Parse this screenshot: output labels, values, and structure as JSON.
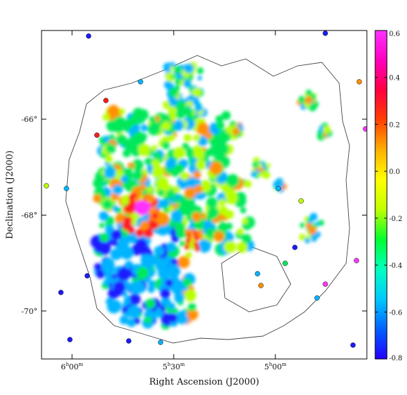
{
  "chart_data": {
    "type": "heatmap",
    "title": "",
    "xlabel": "Right Ascension (J2000)",
    "ylabel": "Declination (J2000)",
    "x_ticks": [
      {
        "label": "6h00m",
        "hours": 6.0
      },
      {
        "label": "5h30m",
        "hours": 5.5
      },
      {
        "label": "5h00m",
        "hours": 5.0
      }
    ],
    "y_ticks": [
      {
        "label": "-66°",
        "deg": -66
      },
      {
        "label": "-68°",
        "deg": -68
      },
      {
        "label": "-70°",
        "deg": -70
      }
    ],
    "xlim_hours": [
      6.15,
      4.55
    ],
    "ylim_deg": [
      -71.0,
      -64.15
    ],
    "colorbar": {
      "range": [
        -0.8,
        0.6
      ],
      "ticks": [
        "0.6",
        "0.4",
        "0.2",
        "0.0",
        "-0.2",
        "-0.4",
        "-0.6",
        "-0.8"
      ],
      "tick_values": [
        0.6,
        0.4,
        0.2,
        0.0,
        -0.2,
        -0.4,
        -0.6,
        -0.8
      ],
      "colors": [
        "#2200ff",
        "#0060ff",
        "#00c8ff",
        "#00ffc0",
        "#00ff30",
        "#c0ff00",
        "#ffff00",
        "#ffb000",
        "#ff4000",
        "#ff0040",
        "#ff00c0",
        "#ff30ff"
      ]
    },
    "grid": false,
    "legend": "colorbar-right",
    "map_colors": {
      "neg_deep": "#1a1aff",
      "neg_mid": "#00b4ff",
      "neutral": "#00e85a",
      "low_pos": "#b8ff00",
      "pos": "#ff9000",
      "high": "#ff1a1a",
      "peak": "#ff33ff",
      "contour": "#444444"
    }
  }
}
